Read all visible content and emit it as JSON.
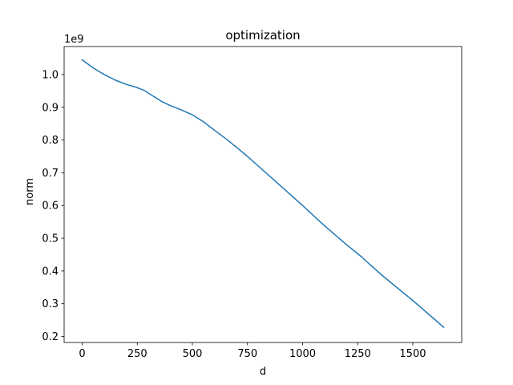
{
  "chart_data": {
    "type": "line",
    "title": "optimization",
    "xlabel": "d",
    "ylabel": "norm",
    "y_offset_label": "1e9",
    "xlim": [
      -82,
      1722
    ],
    "ylim": [
      0.1817,
      1.0856
    ],
    "x_ticks": [
      0,
      250,
      500,
      750,
      1000,
      1250,
      1500
    ],
    "x_tick_labels": [
      "0",
      "250",
      "500",
      "750",
      "1000",
      "1250",
      "1500"
    ],
    "y_ticks": [
      0.2,
      0.3,
      0.4,
      0.5,
      0.6,
      0.7,
      0.8,
      0.9,
      1.0
    ],
    "y_tick_labels": [
      "0.2",
      "0.3",
      "0.4",
      "0.5",
      "0.6",
      "0.7",
      "0.8",
      "0.9",
      "1.0"
    ],
    "grid": false,
    "series": [
      {
        "color": "#1f77b4",
        "x": [
          0,
          50,
          100,
          150,
          200,
          250,
          280,
          320,
          360,
          400,
          450,
          500,
          550,
          600,
          650,
          700,
          750,
          800,
          900,
          1000,
          1100,
          1200,
          1270,
          1300,
          1350,
          1400,
          1500,
          1600,
          1640
        ],
        "y": [
          1.045,
          1.02,
          1.0,
          0.983,
          0.97,
          0.96,
          0.952,
          0.935,
          0.918,
          0.905,
          0.892,
          0.877,
          0.856,
          0.83,
          0.805,
          0.778,
          0.75,
          0.72,
          0.66,
          0.6,
          0.538,
          0.48,
          0.442,
          0.423,
          0.393,
          0.365,
          0.31,
          0.252,
          0.228
        ]
      }
    ]
  }
}
